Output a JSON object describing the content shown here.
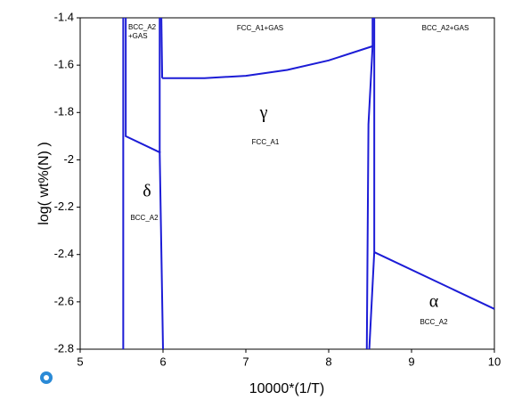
{
  "chart_data": {
    "type": "line",
    "xlabel": "10000*(1/T)",
    "ylabel": "log( wt%(N) )",
    "xlim": [
      5,
      10
    ],
    "ylim": [
      -2.8,
      -1.4
    ],
    "xticks": [
      5,
      6,
      7,
      8,
      9,
      10
    ],
    "yticks": [
      -1.4,
      -1.6,
      -1.8,
      -2,
      -2.2,
      -2.4,
      -2.6,
      -2.8
    ],
    "color": "#1c1cd6",
    "series": [
      {
        "x": [
          5.52,
          5.52
        ],
        "values": [
          -1.4,
          -2.8
        ]
      },
      {
        "x": [
          5.55,
          5.55,
          5.97
        ],
        "values": [
          -1.4,
          -1.9,
          -1.97
        ]
      },
      {
        "x": [
          5.96,
          5.96,
          6.0
        ],
        "values": [
          -1.4,
          -1.97,
          -2.8
        ]
      },
      {
        "x": [
          5.98,
          5.99
        ],
        "values": [
          -1.4,
          -1.655
        ]
      },
      {
        "x": [
          5.99,
          6.5,
          7,
          7.5,
          8,
          8.53
        ],
        "values": [
          -1.655,
          -1.655,
          -1.645,
          -1.62,
          -1.58,
          -1.52
        ]
      },
      {
        "x": [
          8.53,
          8.53,
          8.48,
          8.46
        ],
        "values": [
          -1.4,
          -1.52,
          -1.85,
          -2.8
        ]
      },
      {
        "x": [
          8.55,
          8.55
        ],
        "values": [
          -1.4,
          -2.39
        ]
      },
      {
        "x": [
          8.49,
          8.55
        ],
        "values": [
          -2.8,
          -2.39
        ]
      },
      {
        "x": [
          8.55,
          10
        ],
        "values": [
          -2.39,
          -2.63
        ]
      }
    ],
    "annotations": [
      "BCC_A2",
      "+GAS",
      "FCC_A1+GAS",
      "BCC_A2+GAS",
      "γ",
      "FCC_A1",
      "δ",
      "BCC_A2",
      "α",
      "BCC_A2"
    ]
  }
}
